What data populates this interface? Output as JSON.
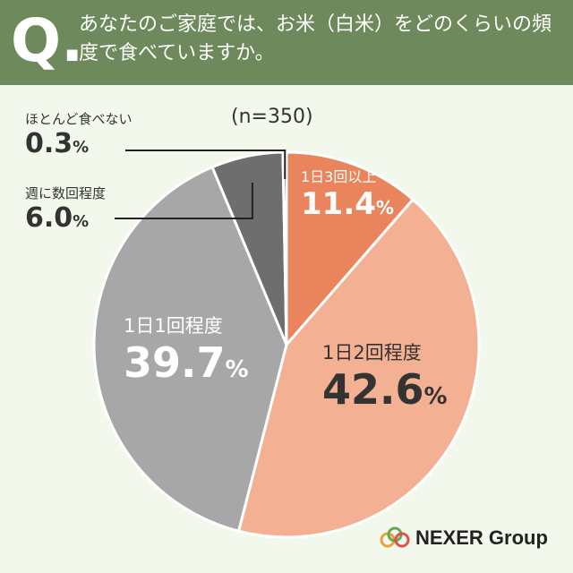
{
  "question": {
    "mark": "Q.",
    "text": "あなたのご家庭では、お米（白米）をどのくらいの頻度で食べていますか。"
  },
  "sample_size": "(n=350)",
  "chart_data": {
    "type": "pie",
    "title": "",
    "unit": "%",
    "slices": [
      {
        "label": "1日3回以上",
        "value": 11.4,
        "display": "11.4",
        "color": "#ea845d"
      },
      {
        "label": "1日2回程度",
        "value": 42.6,
        "display": "42.6",
        "color": "#f4b093"
      },
      {
        "label": "1日1回程度",
        "value": 39.7,
        "display": "39.7",
        "color": "#a7a7a7"
      },
      {
        "label": "週に数回程度",
        "value": 6.0,
        "display": "6.0",
        "color": "#6e6e6e"
      },
      {
        "label": "ほとんど食べない",
        "value": 0.3,
        "display": "0.3",
        "color": "#2b2b2b"
      }
    ]
  },
  "logo": {
    "text": "NEXER Group",
    "colors": [
      "#e8a33d",
      "#6aa84f",
      "#d9534f"
    ]
  }
}
